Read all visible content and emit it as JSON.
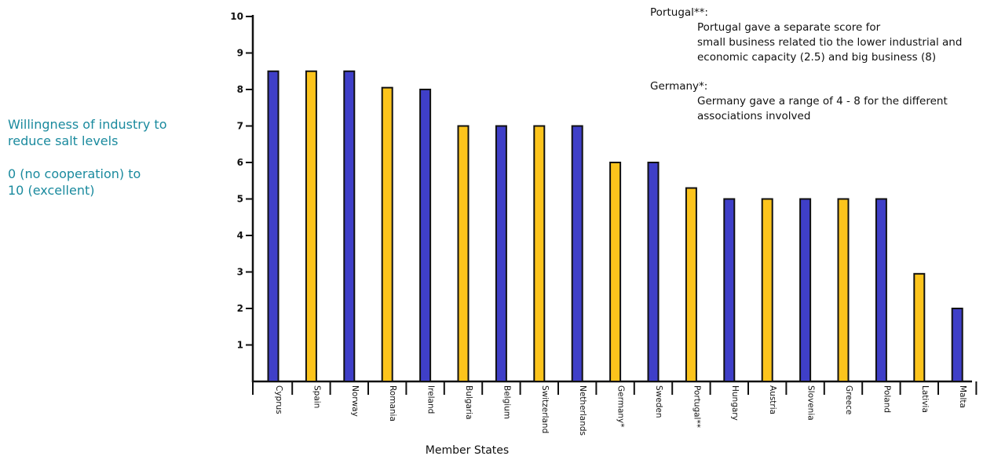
{
  "ylabel_block": {
    "line1": "Willingness of industry to",
    "line2": "reduce salt levels",
    "line3": "0 (no cooperation) to",
    "line4": "10 (excellent)"
  },
  "notes": {
    "portugal_heading": "Portugal**:",
    "portugal_line1": "Portugal gave a separate score for",
    "portugal_line2": "small business related tio the lower industrial and",
    "portugal_line3": "economic capacity (2.5) and big business (8)",
    "germany_heading": "Germany*:",
    "germany_line1": "Germany gave a range of 4 - 8 for the different",
    "germany_line2": "associations involved"
  },
  "colors": {
    "blue": "#3f3fc8",
    "yellow": "#fcc41c",
    "outline": "#111111"
  },
  "chart_data": {
    "type": "bar",
    "xlabel": "Member States",
    "ylabel": "Willingness of industry to reduce salt levels 0 (no cooperation) to 10 (excellent)",
    "ylim": [
      0,
      10
    ],
    "yticks": [
      1,
      2,
      3,
      4,
      5,
      6,
      7,
      8,
      9,
      10
    ],
    "categories": [
      "Cyprus",
      "Spain",
      "Norway",
      "Romania",
      "Ireland",
      "Bulgaria",
      "Belgium",
      "Switzerland",
      "Netherlands",
      "Germany*",
      "Sweden",
      "Portugal**",
      "Hungary",
      "Austria",
      "Slovenia",
      "Greece",
      "Poland",
      "Lativia",
      "Malta"
    ],
    "values": [
      8.5,
      8.5,
      8.5,
      8.05,
      8.0,
      7.0,
      7.0,
      7.0,
      7.0,
      6.0,
      6.0,
      5.3,
      5.0,
      5.0,
      5.0,
      5.0,
      5.0,
      2.95,
      2.0
    ],
    "bar_colors": [
      "blue",
      "yellow",
      "blue",
      "yellow",
      "blue",
      "yellow",
      "blue",
      "yellow",
      "blue",
      "yellow",
      "blue",
      "yellow",
      "blue",
      "yellow",
      "blue",
      "yellow",
      "blue",
      "yellow",
      "blue"
    ],
    "grid": false,
    "legend": "none"
  }
}
